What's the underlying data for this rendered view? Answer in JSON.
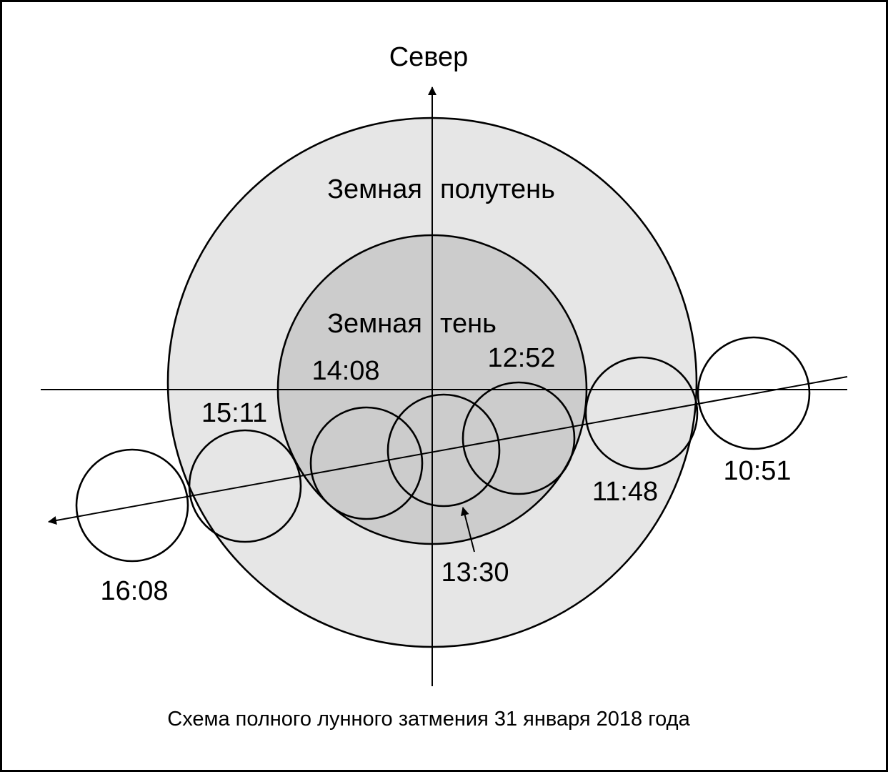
{
  "north_label": "Север",
  "penumbra_label_left": "Земная",
  "penumbra_label_right": "полутень",
  "umbra_label_left": "Земная",
  "umbra_label_right": "тень",
  "moon_positions": [
    {
      "time": "10:51"
    },
    {
      "time": "11:48"
    },
    {
      "time": "12:52"
    },
    {
      "time": "13:30"
    },
    {
      "time": "14:08"
    },
    {
      "time": "15:11"
    },
    {
      "time": "16:08"
    }
  ],
  "caption": "Схема полного лунного затмения 31 января 2018 года",
  "colors": {
    "penumbra_fill": "#e6e6e6",
    "umbra_fill": "#cccccc",
    "line": "#000000",
    "background": "#ffffff"
  }
}
